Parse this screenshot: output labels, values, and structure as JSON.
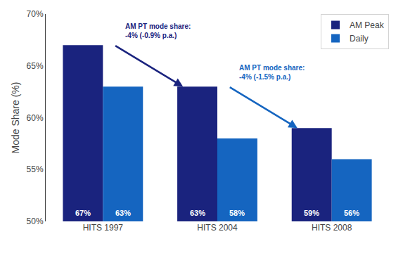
{
  "chart_data": {
    "type": "bar",
    "categories": [
      "HITS 1997",
      "HITS 2004",
      "HITS 2008"
    ],
    "series": [
      {
        "name": "AM Peak",
        "color": "#1a237e",
        "values": [
          67,
          63,
          59
        ],
        "value_labels": [
          "67%",
          "63%",
          "59%"
        ]
      },
      {
        "name": "Daily",
        "color": "#1565c0",
        "values": [
          63,
          58,
          56
        ],
        "value_labels": [
          "63%",
          "58%",
          "56%"
        ]
      }
    ],
    "ylabel": "Mode Share (%)",
    "ylim": [
      50,
      70
    ],
    "yticks": [
      {
        "value": 50,
        "label": "50%"
      },
      {
        "value": 55,
        "label": "55%"
      },
      {
        "value": 60,
        "label": "60%"
      },
      {
        "value": 65,
        "label": "65%"
      },
      {
        "value": 70,
        "label": "70%"
      }
    ],
    "grid": false,
    "legend": "upper right",
    "data_labels": true,
    "annotations": [
      {
        "text": "AM PT mode share:\n-4% (-0.9% p.a.)",
        "color": "#1a237e"
      },
      {
        "text": "AM PT mode share:\n-4% (-1.5% p.a.)",
        "color": "#1565c0"
      }
    ]
  }
}
